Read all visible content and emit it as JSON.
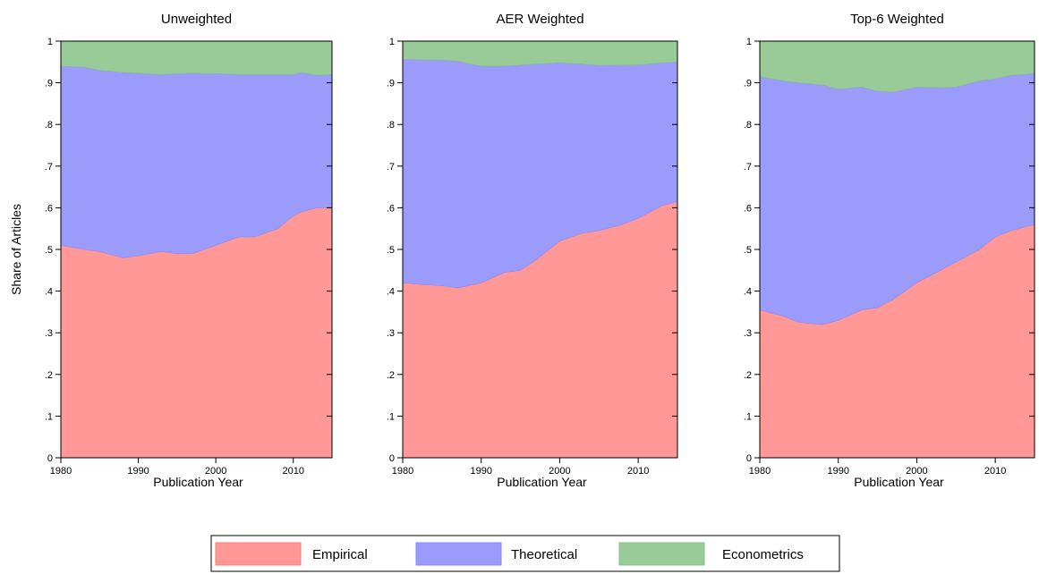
{
  "chart_data": {
    "type": "area",
    "stacked": true,
    "ylabel": "Share of Articles",
    "xlabel": "Publication Year",
    "xlim": [
      1980,
      2015
    ],
    "ylim": [
      0,
      1
    ],
    "xticks": [
      {
        "value": 1980,
        "label": "1980"
      },
      {
        "value": 1990,
        "label": "1990"
      },
      {
        "value": 2000,
        "label": "2000"
      },
      {
        "value": 2010,
        "label": "2010"
      }
    ],
    "yticks": [
      {
        "value": 0,
        "label": "0"
      },
      {
        "value": 0.1,
        "label": ".1"
      },
      {
        "value": 0.2,
        "label": ".2"
      },
      {
        "value": 0.3,
        "label": ".3"
      },
      {
        "value": 0.4,
        "label": ".4"
      },
      {
        "value": 0.5,
        "label": ".5"
      },
      {
        "value": 0.6,
        "label": ".6"
      },
      {
        "value": 0.7,
        "label": ".7"
      },
      {
        "value": 0.8,
        "label": ".8"
      },
      {
        "value": 0.9,
        "label": ".9"
      },
      {
        "value": 1,
        "label": "1"
      }
    ],
    "legend": {
      "position": "bottom",
      "entries": [
        {
          "label": "Empirical",
          "color": "#ff9896"
        },
        {
          "label": "Theoretical",
          "color": "#9b9bfc"
        },
        {
          "label": "Econometrics",
          "color": "#98cb98"
        }
      ]
    },
    "panels": [
      {
        "title": "Unweighted",
        "x": [
          1980,
          1983,
          1985,
          1988,
          1990,
          1993,
          1995,
          1997,
          2000,
          2003,
          2005,
          2008,
          2010,
          2011,
          2013,
          2015
        ],
        "empirical_top": [
          0.51,
          0.5,
          0.495,
          0.48,
          0.485,
          0.495,
          0.49,
          0.49,
          0.51,
          0.53,
          0.53,
          0.55,
          0.58,
          0.59,
          0.6,
          0.6
        ],
        "theoretical_top": [
          0.94,
          0.938,
          0.93,
          0.925,
          0.923,
          0.92,
          0.922,
          0.923,
          0.922,
          0.92,
          0.92,
          0.92,
          0.92,
          0.925,
          0.918,
          0.92
        ],
        "econometrics_top": [
          1,
          1,
          1,
          1,
          1,
          1,
          1,
          1,
          1,
          1,
          1,
          1,
          1,
          1,
          1,
          1
        ]
      },
      {
        "title": "AER Weighted",
        "x": [
          1980,
          1983,
          1985,
          1987,
          1990,
          1993,
          1995,
          1997,
          2000,
          2003,
          2005,
          2008,
          2010,
          2013,
          2015
        ],
        "empirical_top": [
          0.42,
          0.415,
          0.413,
          0.408,
          0.42,
          0.445,
          0.45,
          0.475,
          0.52,
          0.54,
          0.545,
          0.56,
          0.575,
          0.605,
          0.615
        ],
        "theoretical_top": [
          0.957,
          0.955,
          0.955,
          0.952,
          0.94,
          0.94,
          0.943,
          0.945,
          0.948,
          0.945,
          0.942,
          0.943,
          0.943,
          0.948,
          0.95
        ],
        "econometrics_top": [
          1,
          1,
          1,
          1,
          1,
          1,
          1,
          1,
          1,
          1,
          1,
          1,
          1,
          1,
          1
        ]
      },
      {
        "title": "Top-6 Weighted",
        "x": [
          1980,
          1983,
          1985,
          1988,
          1990,
          1993,
          1995,
          1997,
          2000,
          2003,
          2005,
          2008,
          2010,
          2012,
          2015
        ],
        "empirical_top": [
          0.355,
          0.34,
          0.325,
          0.32,
          0.33,
          0.355,
          0.36,
          0.38,
          0.42,
          0.45,
          0.47,
          0.5,
          0.53,
          0.545,
          0.56
        ],
        "theoretical_top": [
          0.915,
          0.905,
          0.9,
          0.895,
          0.885,
          0.89,
          0.88,
          0.878,
          0.89,
          0.888,
          0.89,
          0.905,
          0.91,
          0.918,
          0.922
        ],
        "econometrics_top": [
          1,
          1,
          1,
          1,
          1,
          1,
          1,
          1,
          1,
          1,
          1,
          1,
          1,
          1,
          1
        ]
      }
    ]
  }
}
